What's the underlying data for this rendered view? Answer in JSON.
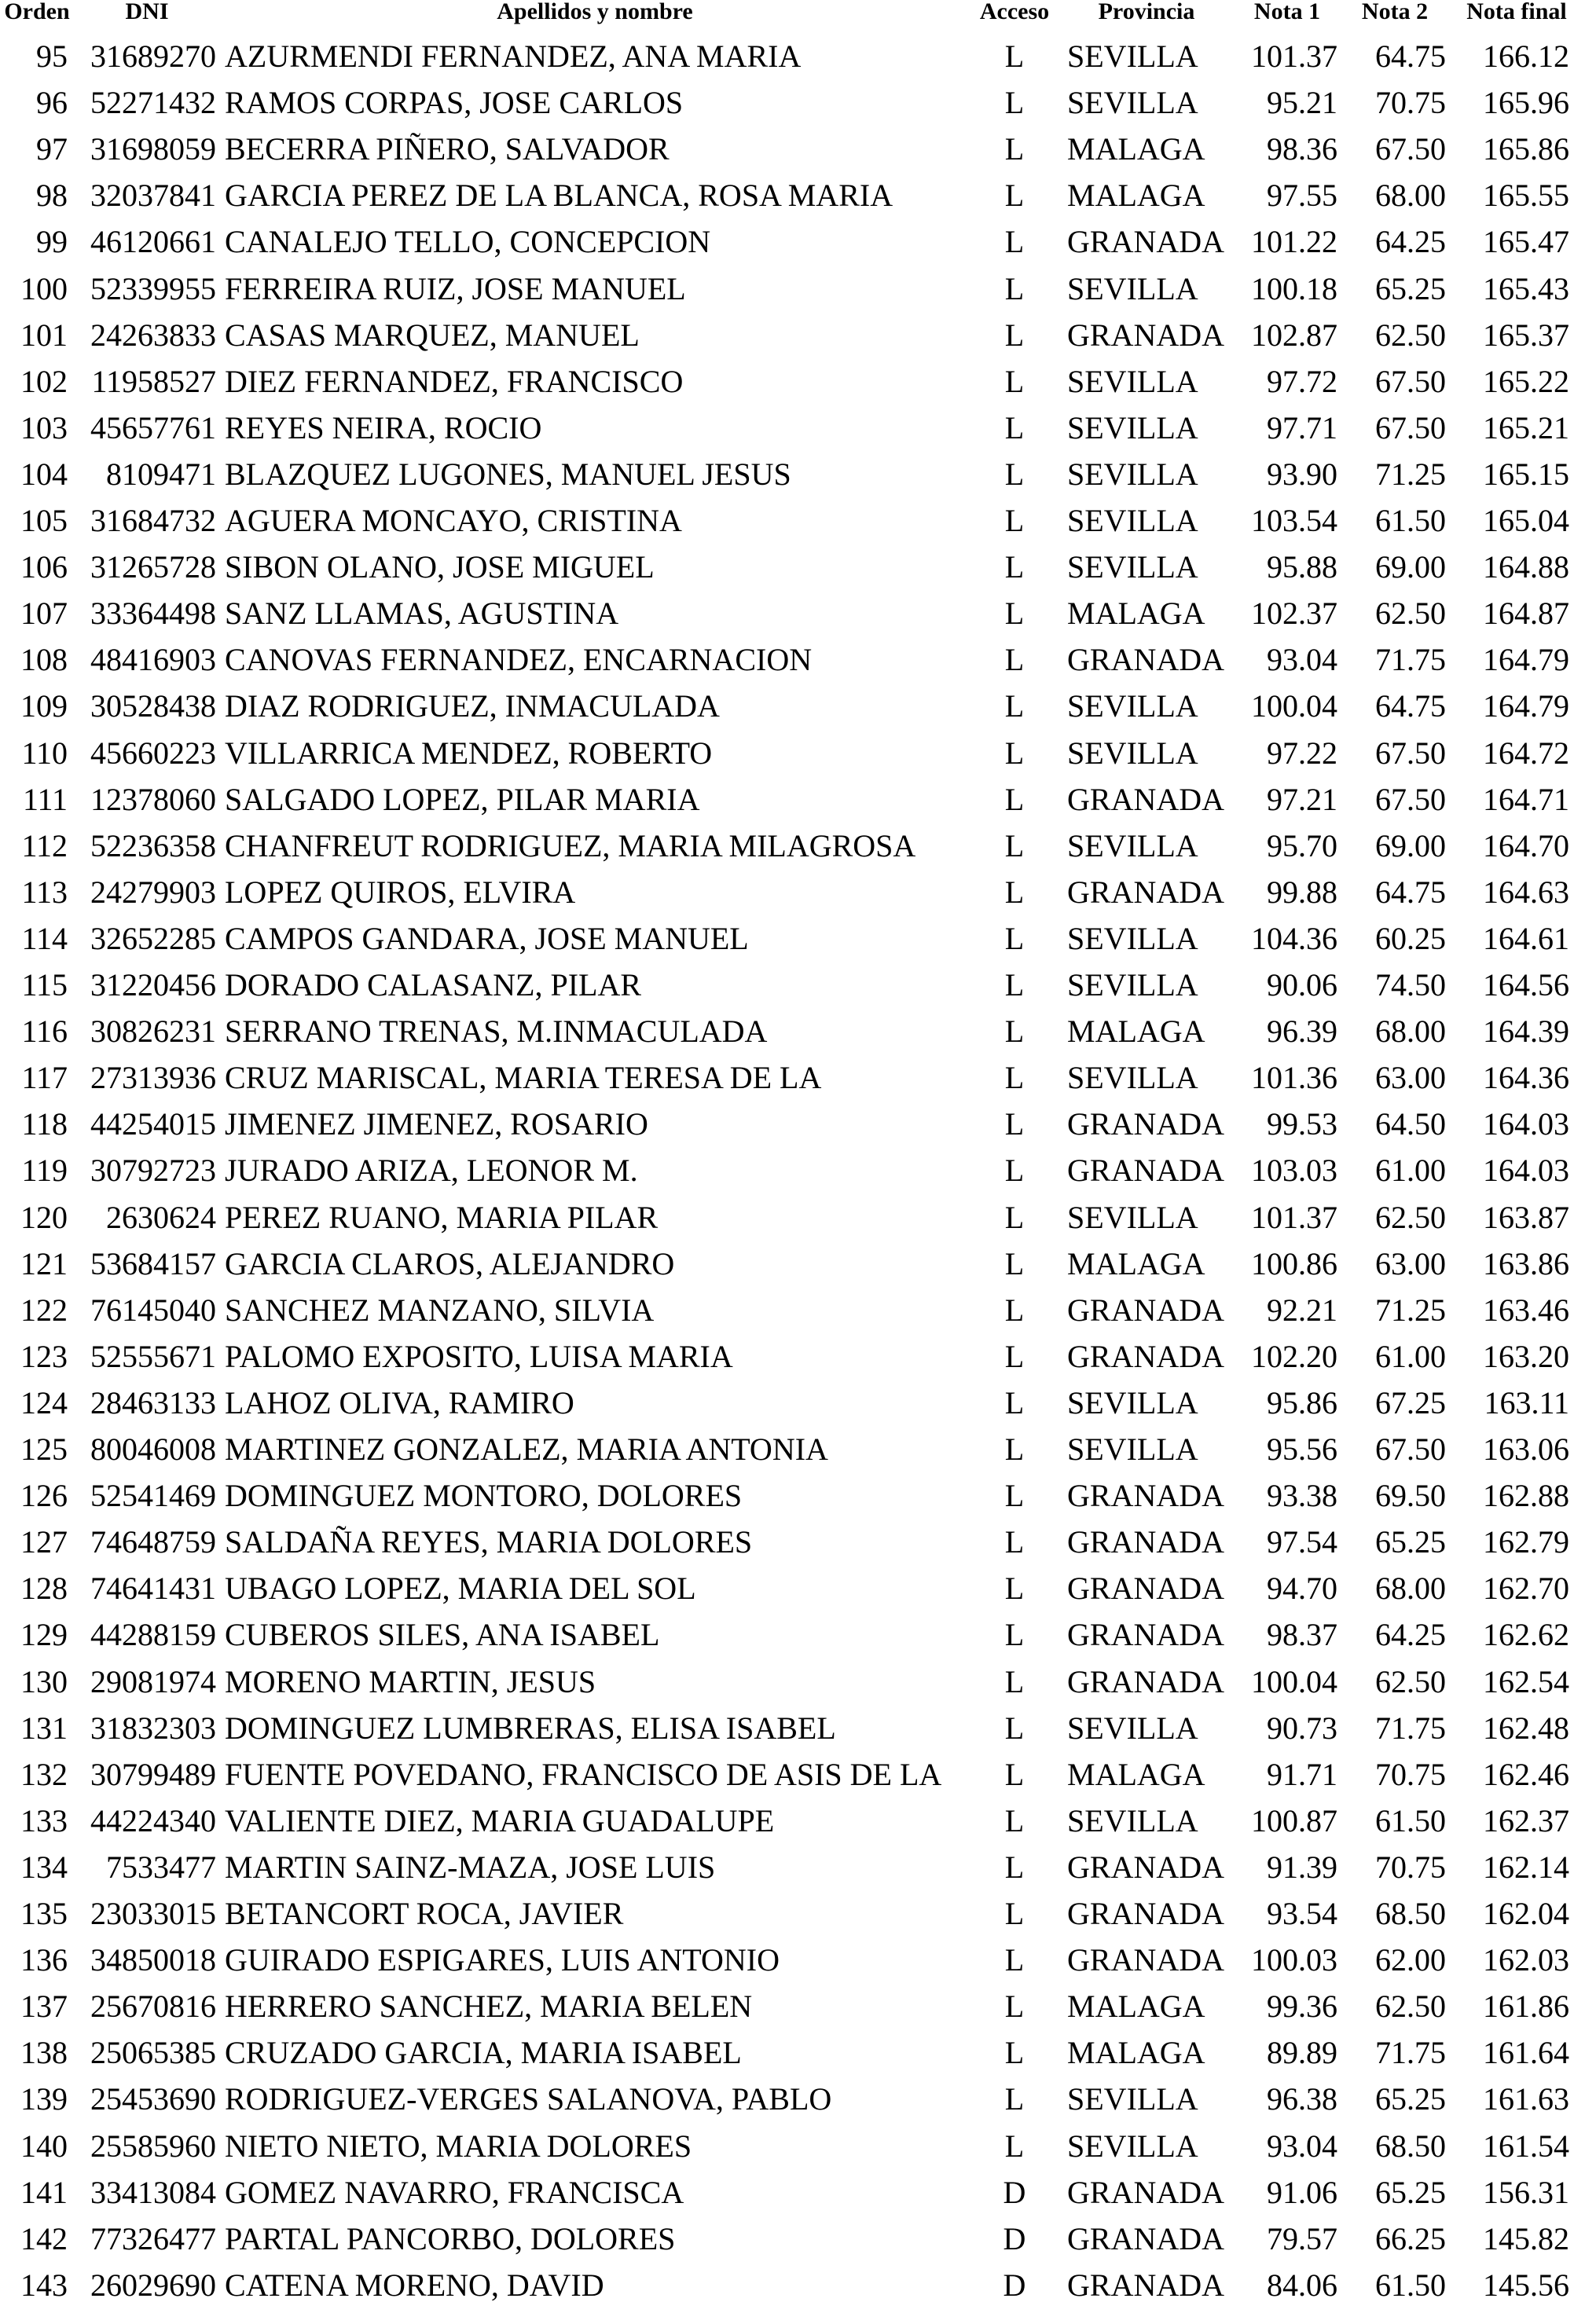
{
  "headers": {
    "orden": "Orden",
    "dni": "DNI",
    "nombre": "Apellidos y nombre",
    "acceso": "Acceso",
    "provincia": "Provincia",
    "nota1": "Nota 1",
    "nota2": "Nota 2",
    "nota_final": "Nota final"
  },
  "rows": [
    [
      "95",
      "31689270",
      "AZURMENDI FERNANDEZ, ANA MARIA",
      "L",
      "SEVILLA",
      "101.37",
      "64.75",
      "166.12"
    ],
    [
      "96",
      "52271432",
      "RAMOS CORPAS, JOSE CARLOS",
      "L",
      "SEVILLA",
      "95.21",
      "70.75",
      "165.96"
    ],
    [
      "97",
      "31698059",
      "BECERRA PIÑERO, SALVADOR",
      "L",
      "MALAGA",
      "98.36",
      "67.50",
      "165.86"
    ],
    [
      "98",
      "32037841",
      "GARCIA PEREZ DE LA BLANCA, ROSA MARIA",
      "L",
      "MALAGA",
      "97.55",
      "68.00",
      "165.55"
    ],
    [
      "99",
      "46120661",
      "CANALEJO TELLO, CONCEPCION",
      "L",
      "GRANADA",
      "101.22",
      "64.25",
      "165.47"
    ],
    [
      "100",
      "52339955",
      "FERREIRA RUIZ, JOSE MANUEL",
      "L",
      "SEVILLA",
      "100.18",
      "65.25",
      "165.43"
    ],
    [
      "101",
      "24263833",
      "CASAS MARQUEZ, MANUEL",
      "L",
      "GRANADA",
      "102.87",
      "62.50",
      "165.37"
    ],
    [
      "102",
      "11958527",
      "DIEZ FERNANDEZ, FRANCISCO",
      "L",
      "SEVILLA",
      "97.72",
      "67.50",
      "165.22"
    ],
    [
      "103",
      "45657761",
      "REYES NEIRA, ROCIO",
      "L",
      "SEVILLA",
      "97.71",
      "67.50",
      "165.21"
    ],
    [
      "104",
      "8109471",
      "BLAZQUEZ LUGONES, MANUEL JESUS",
      "L",
      "SEVILLA",
      "93.90",
      "71.25",
      "165.15"
    ],
    [
      "105",
      "31684732",
      "AGUERA MONCAYO, CRISTINA",
      "L",
      "SEVILLA",
      "103.54",
      "61.50",
      "165.04"
    ],
    [
      "106",
      "31265728",
      "SIBON OLANO, JOSE MIGUEL",
      "L",
      "SEVILLA",
      "95.88",
      "69.00",
      "164.88"
    ],
    [
      "107",
      "33364498",
      "SANZ LLAMAS, AGUSTINA",
      "L",
      "MALAGA",
      "102.37",
      "62.50",
      "164.87"
    ],
    [
      "108",
      "48416903",
      "CANOVAS FERNANDEZ, ENCARNACION",
      "L",
      "GRANADA",
      "93.04",
      "71.75",
      "164.79"
    ],
    [
      "109",
      "30528438",
      "DIAZ RODRIGUEZ, INMACULADA",
      "L",
      "SEVILLA",
      "100.04",
      "64.75",
      "164.79"
    ],
    [
      "110",
      "45660223",
      "VILLARRICA MENDEZ, ROBERTO",
      "L",
      "SEVILLA",
      "97.22",
      "67.50",
      "164.72"
    ],
    [
      "111",
      "12378060",
      "SALGADO LOPEZ, PILAR MARIA",
      "L",
      "GRANADA",
      "97.21",
      "67.50",
      "164.71"
    ],
    [
      "112",
      "52236358",
      "CHANFREUT RODRIGUEZ, MARIA MILAGROSA",
      "L",
      "SEVILLA",
      "95.70",
      "69.00",
      "164.70"
    ],
    [
      "113",
      "24279903",
      "LOPEZ QUIROS, ELVIRA",
      "L",
      "GRANADA",
      "99.88",
      "64.75",
      "164.63"
    ],
    [
      "114",
      "32652285",
      "CAMPOS GANDARA, JOSE MANUEL",
      "L",
      "SEVILLA",
      "104.36",
      "60.25",
      "164.61"
    ],
    [
      "115",
      "31220456",
      "DORADO CALASANZ, PILAR",
      "L",
      "SEVILLA",
      "90.06",
      "74.50",
      "164.56"
    ],
    [
      "116",
      "30826231",
      "SERRANO TRENAS, M.INMACULADA",
      "L",
      "MALAGA",
      "96.39",
      "68.00",
      "164.39"
    ],
    [
      "117",
      "27313936",
      "CRUZ MARISCAL, MARIA TERESA DE LA",
      "L",
      "SEVILLA",
      "101.36",
      "63.00",
      "164.36"
    ],
    [
      "118",
      "44254015",
      "JIMENEZ JIMENEZ, ROSARIO",
      "L",
      "GRANADA",
      "99.53",
      "64.50",
      "164.03"
    ],
    [
      "119",
      "30792723",
      "JURADO ARIZA, LEONOR M.",
      "L",
      "GRANADA",
      "103.03",
      "61.00",
      "164.03"
    ],
    [
      "120",
      "2630624",
      "PEREZ RUANO, MARIA PILAR",
      "L",
      "SEVILLA",
      "101.37",
      "62.50",
      "163.87"
    ],
    [
      "121",
      "53684157",
      "GARCIA CLAROS, ALEJANDRO",
      "L",
      "MALAGA",
      "100.86",
      "63.00",
      "163.86"
    ],
    [
      "122",
      "76145040",
      "SANCHEZ MANZANO, SILVIA",
      "L",
      "GRANADA",
      "92.21",
      "71.25",
      "163.46"
    ],
    [
      "123",
      "52555671",
      "PALOMO EXPOSITO, LUISA MARIA",
      "L",
      "GRANADA",
      "102.20",
      "61.00",
      "163.20"
    ],
    [
      "124",
      "28463133",
      "LAHOZ OLIVA, RAMIRO",
      "L",
      "SEVILLA",
      "95.86",
      "67.25",
      "163.11"
    ],
    [
      "125",
      "80046008",
      "MARTINEZ GONZALEZ, MARIA ANTONIA",
      "L",
      "SEVILLA",
      "95.56",
      "67.50",
      "163.06"
    ],
    [
      "126",
      "52541469",
      "DOMINGUEZ MONTORO, DOLORES",
      "L",
      "GRANADA",
      "93.38",
      "69.50",
      "162.88"
    ],
    [
      "127",
      "74648759",
      "SALDAÑA REYES, MARIA DOLORES",
      "L",
      "GRANADA",
      "97.54",
      "65.25",
      "162.79"
    ],
    [
      "128",
      "74641431",
      "UBAGO LOPEZ, MARIA DEL SOL",
      "L",
      "GRANADA",
      "94.70",
      "68.00",
      "162.70"
    ],
    [
      "129",
      "44288159",
      "CUBEROS SILES, ANA ISABEL",
      "L",
      "GRANADA",
      "98.37",
      "64.25",
      "162.62"
    ],
    [
      "130",
      "29081974",
      "MORENO MARTIN, JESUS",
      "L",
      "GRANADA",
      "100.04",
      "62.50",
      "162.54"
    ],
    [
      "131",
      "31832303",
      "DOMINGUEZ LUMBRERAS, ELISA ISABEL",
      "L",
      "SEVILLA",
      "90.73",
      "71.75",
      "162.48"
    ],
    [
      "132",
      "30799489",
      "FUENTE POVEDANO, FRANCISCO DE ASIS DE LA",
      "L",
      "MALAGA",
      "91.71",
      "70.75",
      "162.46"
    ],
    [
      "133",
      "44224340",
      "VALIENTE DIEZ, MARIA GUADALUPE",
      "L",
      "SEVILLA",
      "100.87",
      "61.50",
      "162.37"
    ],
    [
      "134",
      "7533477",
      "MARTIN SAINZ-MAZA, JOSE LUIS",
      "L",
      "GRANADA",
      "91.39",
      "70.75",
      "162.14"
    ],
    [
      "135",
      "23033015",
      "BETANCORT ROCA, JAVIER",
      "L",
      "GRANADA",
      "93.54",
      "68.50",
      "162.04"
    ],
    [
      "136",
      "34850018",
      "GUIRADO ESPIGARES, LUIS ANTONIO",
      "L",
      "GRANADA",
      "100.03",
      "62.00",
      "162.03"
    ],
    [
      "137",
      "25670816",
      "HERRERO SANCHEZ, MARIA BELEN",
      "L",
      "MALAGA",
      "99.36",
      "62.50",
      "161.86"
    ],
    [
      "138",
      "25065385",
      "CRUZADO GARCIA, MARIA ISABEL",
      "L",
      "MALAGA",
      "89.89",
      "71.75",
      "161.64"
    ],
    [
      "139",
      "25453690",
      "RODRIGUEZ-VERGES SALANOVA, PABLO",
      "L",
      "SEVILLA",
      "96.38",
      "65.25",
      "161.63"
    ],
    [
      "140",
      "25585960",
      "NIETO NIETO, MARIA DOLORES",
      "L",
      "SEVILLA",
      "93.04",
      "68.50",
      "161.54"
    ],
    [
      "141",
      "33413084",
      "GOMEZ NAVARRO, FRANCISCA",
      "D",
      "GRANADA",
      "91.06",
      "65.25",
      "156.31"
    ],
    [
      "142",
      "77326477",
      "PARTAL PANCORBO, DOLORES",
      "D",
      "GRANADA",
      "79.57",
      "66.25",
      "145.82"
    ],
    [
      "143",
      "26029690",
      "CATENA MORENO, DAVID",
      "D",
      "GRANADA",
      "84.06",
      "61.50",
      "145.56"
    ]
  ]
}
